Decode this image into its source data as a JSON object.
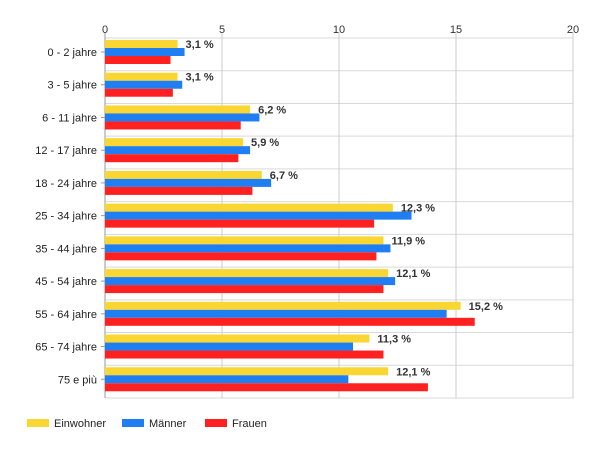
{
  "chart_data": {
    "type": "bar",
    "orientation": "horizontal",
    "xlim": [
      0,
      20
    ],
    "x_ticks": [
      0,
      5,
      10,
      15,
      20
    ],
    "grid": true,
    "legend_position": "bottom-left",
    "categories": [
      "0 - 2 jahre",
      "3 - 5 jahre",
      "6 - 11 jahre",
      "12 - 17 jahre",
      "18 - 24 jahre",
      "25 - 34 jahre",
      "35 - 44 jahre",
      "45 - 54 jahre",
      "55 - 64 jahre",
      "65 - 74 jahre",
      "75 e più"
    ],
    "series": [
      {
        "name": "Einwohner",
        "color": "#f9d632",
        "values": [
          3.1,
          3.1,
          6.2,
          5.9,
          6.7,
          12.3,
          11.9,
          12.1,
          15.2,
          11.3,
          12.1
        ]
      },
      {
        "name": "Männer",
        "color": "#1f7ef2",
        "values": [
          3.4,
          3.3,
          6.6,
          6.2,
          7.1,
          13.1,
          12.2,
          12.4,
          14.6,
          10.6,
          10.4
        ]
      },
      {
        "name": "Frauen",
        "color": "#ff2020",
        "values": [
          2.8,
          2.9,
          5.8,
          5.7,
          6.3,
          11.5,
          11.6,
          11.9,
          15.8,
          11.9,
          13.8
        ]
      }
    ],
    "data_labels": [
      "3,1 %",
      "3,1 %",
      "6,2 %",
      "5,9 %",
      "6,7 %",
      "12,3 %",
      "11,9 %",
      "12,1 %",
      "15,2 %",
      "11,3 %",
      "12,1 %"
    ]
  }
}
